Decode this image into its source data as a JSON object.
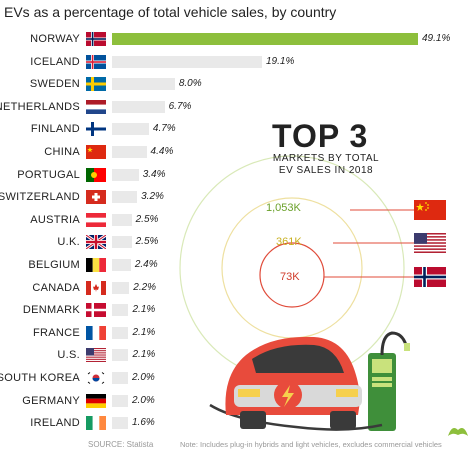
{
  "chart_data": {
    "type": "bar",
    "orientation": "horizontal",
    "title": "EVs as a percentage of total vehicle sales, by country",
    "categories": [
      "NORWAY",
      "ICELAND",
      "SWEDEN",
      "NETHERLANDS",
      "FINLAND",
      "CHINA",
      "PORTUGAL",
      "SWITZERLAND",
      "AUSTRIA",
      "U.K.",
      "BELGIUM",
      "CANADA",
      "DENMARK",
      "FRANCE",
      "U.S.",
      "SOUTH KOREA",
      "GERMANY",
      "IRELAND"
    ],
    "values": [
      49.1,
      19.1,
      8.0,
      6.7,
      4.7,
      4.4,
      3.4,
      3.2,
      2.5,
      2.5,
      2.4,
      2.2,
      2.1,
      2.1,
      2.1,
      2.0,
      2.0,
      1.6
    ],
    "value_labels": [
      "49.1%",
      "19.1%",
      "8.0%",
      "6.7%",
      "4.7%",
      "4.4%",
      "3.4%",
      "3.2%",
      "2.5%",
      "2.5%",
      "2.4%",
      "2.2%",
      "2.1%",
      "2.1%",
      "2.1%",
      "2.0%",
      "2.0%",
      "1.6%"
    ],
    "xlim": [
      0,
      50
    ],
    "highlight_color": "#8dbf3c",
    "bar_color": "#e9e9e9"
  },
  "top3": {
    "heading": "TOP 3",
    "subtitle_line1": "MARKETS BY TOTAL",
    "subtitle_line2": "EV SALES IN 2018",
    "markets": [
      {
        "value": "1,053K",
        "flag": "china-flag",
        "color": "#8dbf3c"
      },
      {
        "value": "361K",
        "flag": "us-flag",
        "color": "#e3cf3a"
      },
      {
        "value": "73K",
        "flag": "norway-flag",
        "color": "#e04b3a"
      }
    ]
  },
  "footer": {
    "source": "SOURCE: Statista",
    "note": "Note: Includes plug-in hybrids and light vehicles, excludes commercial vehicles"
  }
}
